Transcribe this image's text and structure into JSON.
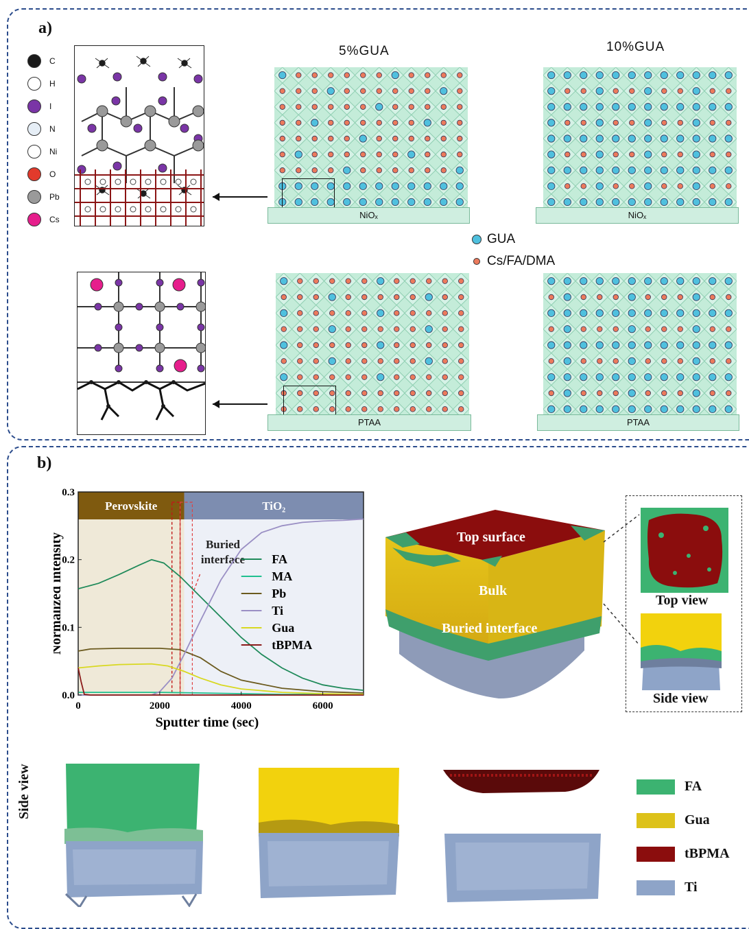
{
  "panel_a": {
    "label": "a)",
    "legend": [
      {
        "symbol": "C",
        "color": "#1a1a1a"
      },
      {
        "symbol": "H",
        "color": "#ffffff"
      },
      {
        "symbol": "I",
        "color": "#7a35a6"
      },
      {
        "symbol": "N",
        "color": "#e6eef6"
      },
      {
        "symbol": "Ni",
        "color": "#ffffff"
      },
      {
        "symbol": "O",
        "color": "#e23a2c"
      },
      {
        "symbol": "Pb",
        "color": "#9a9a9a"
      },
      {
        "symbol": "Cs",
        "color": "#e61e8c"
      }
    ],
    "col_headers": [
      "5%GUA",
      "10%GUA"
    ],
    "substrate_top": "NiOₓ",
    "substrate_bottom": "PTAA",
    "key": [
      {
        "label": "GUA",
        "color": "#4fc0de"
      },
      {
        "label": "Cs/FA/DMA",
        "color": "#ec7a5c"
      }
    ]
  },
  "panel_b": {
    "label": "b)",
    "chart_data": {
      "type": "line",
      "xlabel": "Sputter time (sec)",
      "ylabel": "Normalized intensity",
      "xlim": [
        0,
        7000
      ],
      "ylim": [
        0,
        0.3
      ],
      "xticks": [
        "0",
        "2000",
        "4000",
        "6000"
      ],
      "yticks": [
        "0.0",
        "0.1",
        "0.2",
        "0.3"
      ],
      "regions": [
        {
          "label": "Perovskite",
          "from": 0,
          "to": 2600,
          "color": "#7f5a0f"
        },
        {
          "label": "TiO₂",
          "from": 2600,
          "to": 7000,
          "color": "#7d8db0"
        }
      ],
      "annotation": "Buried interface",
      "series": [
        {
          "name": "FA",
          "color": "#1f8a5a",
          "x": [
            0,
            500,
            1000,
            1500,
            1800,
            2100,
            2500,
            3000,
            3500,
            4000,
            4500,
            5000,
            5500,
            6000,
            6500,
            7000
          ],
          "y": [
            0.157,
            0.165,
            0.178,
            0.192,
            0.2,
            0.195,
            0.175,
            0.145,
            0.115,
            0.085,
            0.06,
            0.04,
            0.025,
            0.015,
            0.01,
            0.007
          ]
        },
        {
          "name": "MA",
          "color": "#20c08f",
          "x": [
            0,
            1000,
            2000,
            3000,
            4000,
            5000,
            6000,
            7000
          ],
          "y": [
            0.004,
            0.004,
            0.004,
            0.003,
            0.002,
            0.001,
            0.001,
            0.001
          ]
        },
        {
          "name": "Pb",
          "color": "#6b5a1e",
          "x": [
            0,
            300,
            1000,
            2000,
            2500,
            3000,
            3500,
            4000,
            5000,
            6000,
            7000
          ],
          "y": [
            0.065,
            0.068,
            0.069,
            0.069,
            0.067,
            0.055,
            0.035,
            0.022,
            0.01,
            0.005,
            0.003
          ]
        },
        {
          "name": "Ti",
          "color": "#9a8fc4",
          "x": [
            0,
            1800,
            2000,
            2300,
            2600,
            3000,
            3500,
            4000,
            4500,
            5000,
            5500,
            6000,
            6500,
            7000
          ],
          "y": [
            0.0,
            0.0,
            0.005,
            0.025,
            0.06,
            0.11,
            0.17,
            0.215,
            0.24,
            0.25,
            0.255,
            0.257,
            0.258,
            0.26
          ]
        },
        {
          "name": "Gua",
          "color": "#d8d820",
          "x": [
            0,
            500,
            1000,
            1800,
            2200,
            2600,
            3000,
            3500,
            4000,
            5000,
            6000,
            7000
          ],
          "y": [
            0.04,
            0.043,
            0.045,
            0.046,
            0.043,
            0.035,
            0.025,
            0.015,
            0.009,
            0.004,
            0.002,
            0.001
          ]
        },
        {
          "name": "tBPMA",
          "color": "#8b1a1a",
          "x": [
            0,
            70,
            150,
            300,
            7000
          ],
          "y": [
            0.04,
            0.02,
            0.001,
            0.0,
            0.0
          ]
        }
      ]
    },
    "render_labels": {
      "top_surface": "Top surface",
      "bulk": "Bulk",
      "buried_interface": "Buried interface",
      "top_view": "Top view",
      "side_view": "Side view"
    },
    "legend": [
      {
        "label": "FA",
        "color": "#3cb371"
      },
      {
        "label": "Gua",
        "color": "#ddc21a"
      },
      {
        "label": "tBPMA",
        "color": "#8b0d0d"
      },
      {
        "label": "Ti",
        "color": "#8ea4c8"
      }
    ]
  }
}
